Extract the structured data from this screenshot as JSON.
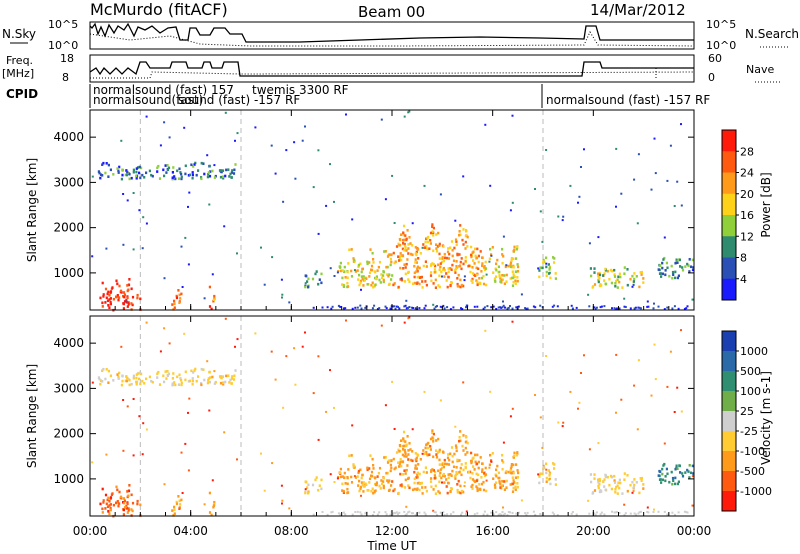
{
  "header": {
    "station": "McMurdo (fitACF)",
    "beam": "Beam 00",
    "date": "14/Mar/2012"
  },
  "top_panels": {
    "nsky_label": "N.Sky",
    "nsky_ticks": [
      "10^5",
      "10^0"
    ],
    "nsearch_label": "N.Search",
    "nsearch_ticks": [
      "10^5",
      "10^0"
    ],
    "freq_label_line1": "Freq.",
    "freq_label_line2": "[MHz]",
    "freq_ticks": [
      "18",
      "8"
    ],
    "nave_label": "Nave",
    "nave_ticks": [
      "60",
      "0"
    ],
    "cpid_label": "CPID",
    "cpid_texts": [
      "normalsound (fast) 157",
      "twemis 3300 RF",
      "normalsound(fast)",
      "sound (fast) -157 RF",
      "normalsound (fast) -157 RF"
    ]
  },
  "x_axis": {
    "label": "Time UT",
    "ticks": [
      "00:00",
      "04:00",
      "08:00",
      "12:00",
      "16:00",
      "20:00",
      "00:00"
    ]
  },
  "panels": {
    "power": {
      "ylabel": "Slant Range [km]",
      "yticks": [
        "1000",
        "2000",
        "3000",
        "4000"
      ],
      "colorbar_label": "Power [dB]",
      "colorbar_ticks": [
        "4",
        "8",
        "12",
        "16",
        "20",
        "24",
        "28"
      ],
      "colors": [
        "#1a1aff",
        "#2a4fb5",
        "#2e8b6e",
        "#8fd03a",
        "#ffd21a",
        "#ff9a1a",
        "#ff5a10",
        "#ff1a0a"
      ]
    },
    "velocity": {
      "ylabel": "Slant Range [km]",
      "yticks": [
        "1000",
        "2000",
        "3000",
        "4000"
      ],
      "colorbar_label": "Velocity [m s-1]",
      "colorbar_ticks": [
        "1000",
        "500",
        "100",
        "25",
        "-25",
        "-100",
        "-500",
        "-1000"
      ],
      "colors": [
        "#1a3fb0",
        "#2a6aa8",
        "#2f8f70",
        "#6fae48",
        "#cfcfcf",
        "#ffcc33",
        "#ff9a1a",
        "#ff5a10",
        "#ff1a0a"
      ]
    }
  },
  "chart_data": {
    "type": "heatmap",
    "title": "McMurdo (fitACF) Beam 00 14/Mar/2012",
    "xlabel": "Time UT",
    "ylabel": "Slant Range [km]",
    "xlim_hours": [
      0,
      24
    ],
    "ylim_km": [
      180,
      4600
    ],
    "vertical_dashed_lines_hours": [
      2,
      6,
      18
    ],
    "echo_regions": [
      {
        "t0": 0.3,
        "t1": 2.0,
        "r0": 200,
        "r1": 900,
        "power_db": 28,
        "velocity": -1000
      },
      {
        "t0": 3.2,
        "t1": 3.6,
        "r0": 200,
        "r1": 800,
        "power_db": 24,
        "velocity": -500
      },
      {
        "t0": 4.7,
        "t1": 4.9,
        "r0": 200,
        "r1": 800,
        "power_db": 22,
        "velocity": -500
      },
      {
        "t0": 0.3,
        "t1": 5.8,
        "r0": 3100,
        "r1": 3500,
        "power_db": 6,
        "velocity": -100
      },
      {
        "t0": 8.5,
        "t1": 9.2,
        "r0": 700,
        "r1": 1100,
        "power_db": 8,
        "velocity": -100
      },
      {
        "t0": 9.8,
        "t1": 12.0,
        "r0": 700,
        "r1": 1600,
        "power_db": 16,
        "velocity": -500
      },
      {
        "t0": 12.0,
        "t1": 15.5,
        "r0": 700,
        "r1": 2100,
        "power_db": 20,
        "velocity": -500
      },
      {
        "t0": 15.5,
        "t1": 17.0,
        "r0": 700,
        "r1": 1700,
        "power_db": 16,
        "velocity": -500
      },
      {
        "t0": 17.8,
        "t1": 18.5,
        "r0": 900,
        "r1": 1500,
        "power_db": 12,
        "velocity": -100
      },
      {
        "t0": 19.8,
        "t1": 22.0,
        "r0": 700,
        "r1": 1200,
        "power_db": 14,
        "velocity": -100
      },
      {
        "t0": 22.5,
        "t1": 24.0,
        "r0": 900,
        "r1": 1400,
        "power_db": 8,
        "velocity": 100
      }
    ]
  }
}
